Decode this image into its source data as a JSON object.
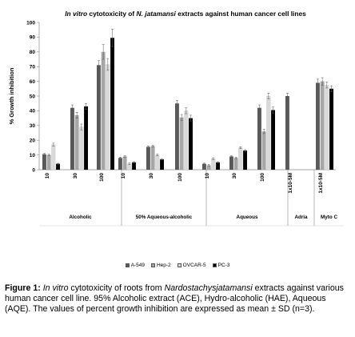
{
  "chart_data": {
    "type": "bar",
    "title_italic": "In vitro",
    "title_mid": " cytotoxicity of ",
    "title_italic2": "N. jatamansi",
    "title_rest": " extracts against human cancer cell lines",
    "ylabel": "% Growth inhibition",
    "ylim": [
      0,
      100
    ],
    "yticks": [
      0,
      10,
      20,
      30,
      40,
      50,
      60,
      70,
      80,
      90,
      100
    ],
    "grid": false,
    "legend_position": "bottom",
    "series": [
      {
        "name": "A-549",
        "color": "#595959"
      },
      {
        "name": "Hep-2",
        "color": "#a6a6a6"
      },
      {
        "name": "OVCAR-5",
        "color": "#d9d9d9"
      },
      {
        "name": "PC-3",
        "color": "#000000"
      }
    ],
    "groups": [
      {
        "label": "Alcoholic",
        "entries": [
          {
            "tick": "10",
            "values": [
              10.5,
              10,
              17,
              4
            ],
            "errors": [
              0.6,
              0.6,
              1.0,
              0.3
            ]
          },
          {
            "tick": "30",
            "values": [
              42,
              37,
              29,
              43
            ],
            "errors": [
              2.0,
              2.0,
              2.0,
              2.0
            ]
          },
          {
            "tick": "100",
            "values": [
              71,
              80,
              71.5,
              89.5
            ],
            "errors": [
              3.0,
              5.0,
              4.0,
              6.0
            ]
          }
        ]
      },
      {
        "label": "50% Aqueous-alcoholic",
        "entries": [
          {
            "tick": "10",
            "values": [
              8,
              9,
              4,
              5
            ],
            "errors": [
              0.5,
              0.5,
              0.5,
              0.4
            ]
          },
          {
            "tick": "30",
            "values": [
              15.5,
              16,
              10,
              7
            ],
            "errors": [
              0.6,
              0.6,
              0.6,
              0.4
            ]
          },
          {
            "tick": "100",
            "values": [
              45,
              35.5,
              40,
              35
            ],
            "errors": [
              2.0,
              2.0,
              2.0,
              2.0
            ]
          }
        ]
      },
      {
        "label": "Aqueous",
        "entries": [
          {
            "tick": "10",
            "values": [
              4,
              3,
              7.5,
              5
            ],
            "errors": [
              0.4,
              0.4,
              0.6,
              0.4
            ]
          },
          {
            "tick": "30",
            "values": [
              9,
              8,
              15,
              13
            ],
            "errors": [
              0.5,
              0.5,
              0.6,
              0.6
            ]
          },
          {
            "tick": "100",
            "values": [
              42,
              26,
              50,
              40.5
            ],
            "errors": [
              2.0,
              1.5,
              2.0,
              2.0
            ]
          }
        ]
      },
      {
        "label": "Adria",
        "entries": [
          {
            "tick": "1x10-5M",
            "values": [
              50,
              null,
              null,
              null
            ],
            "errors": [
              2.0,
              0,
              0,
              0
            ]
          }
        ]
      },
      {
        "label": "Myto C",
        "entries": [
          {
            "tick": "1x10-5M",
            "values": [
              59,
              60,
              57.5,
              55
            ],
            "errors": [
              2.5,
              2.5,
              2.0,
              2.0
            ]
          }
        ]
      }
    ]
  },
  "caption": {
    "fig_label": "Figure 1:",
    "p1_italic": "In vitro",
    "p2": " cytotoxicity of roots from ",
    "p3_italic": "Nardostachysjatamansi",
    "p4": " extracts against various human cancer cell line. 95% Alcoholic extract (ACE), Hydro-alcoholic (HAE), Aqueous (AQE). The values of percent growth inhibition are expressed as mean ± SD (n=3)."
  }
}
